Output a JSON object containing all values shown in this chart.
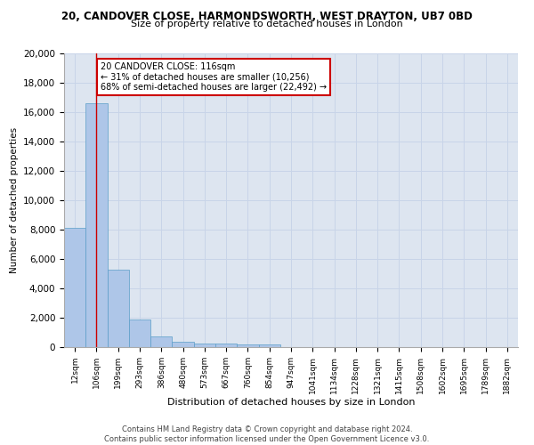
{
  "title_line1": "20, CANDOVER CLOSE, HARMONDSWORTH, WEST DRAYTON, UB7 0BD",
  "title_line2": "Size of property relative to detached houses in London",
  "xlabel": "Distribution of detached houses by size in London",
  "ylabel": "Number of detached properties",
  "bar_color": "#aec6e8",
  "bar_edge_color": "#5a9dc8",
  "categories": [
    "12sqm",
    "106sqm",
    "199sqm",
    "293sqm",
    "386sqm",
    "480sqm",
    "573sqm",
    "667sqm",
    "760sqm",
    "854sqm",
    "947sqm",
    "1041sqm",
    "1134sqm",
    "1228sqm",
    "1321sqm",
    "1415sqm",
    "1508sqm",
    "1602sqm",
    "1695sqm",
    "1789sqm",
    "1882sqm"
  ],
  "values": [
    8100,
    16600,
    5300,
    1850,
    700,
    380,
    270,
    220,
    190,
    200,
    0,
    0,
    0,
    0,
    0,
    0,
    0,
    0,
    0,
    0,
    0
  ],
  "ylim": [
    0,
    20000
  ],
  "yticks": [
    0,
    2000,
    4000,
    6000,
    8000,
    10000,
    12000,
    14000,
    16000,
    18000,
    20000
  ],
  "annotation_text": "20 CANDOVER CLOSE: 116sqm\n← 31% of detached houses are smaller (10,256)\n68% of semi-detached houses are larger (22,492) →",
  "annotation_box_color": "#ffffff",
  "annotation_box_edge": "#cc0000",
  "vline_x": 1.0,
  "vline_color": "#cc0000",
  "grid_color": "#c8d4e8",
  "bg_color": "#dde5f0",
  "footer_line1": "Contains HM Land Registry data © Crown copyright and database right 2024.",
  "footer_line2": "Contains public sector information licensed under the Open Government Licence v3.0."
}
